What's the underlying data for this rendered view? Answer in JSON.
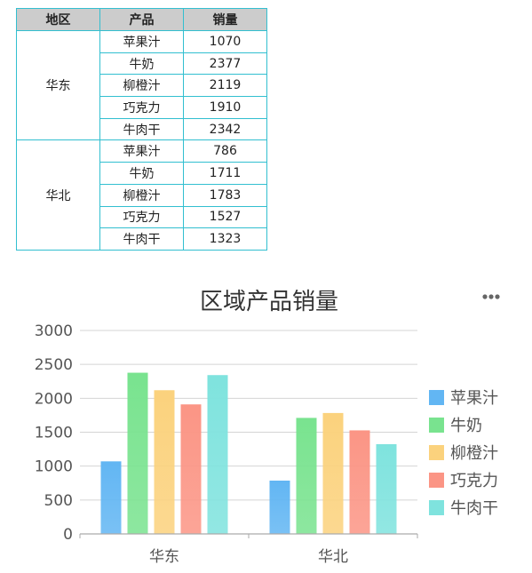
{
  "table": {
    "headers": [
      "地区",
      "产品",
      "销量"
    ],
    "groups": [
      {
        "region": "华东",
        "rows": [
          {
            "product": "苹果汁",
            "sales": "1070"
          },
          {
            "product": "牛奶",
            "sales": "2377"
          },
          {
            "product": "柳橙汁",
            "sales": "2119"
          },
          {
            "product": "巧克力",
            "sales": "1910"
          },
          {
            "product": "牛肉干",
            "sales": "2342"
          }
        ]
      },
      {
        "region": "华北",
        "rows": [
          {
            "product": "苹果汁",
            "sales": "786"
          },
          {
            "product": "牛奶",
            "sales": "1711"
          },
          {
            "product": "柳橙汁",
            "sales": "1783"
          },
          {
            "product": "巧克力",
            "sales": "1527"
          },
          {
            "product": "牛肉干",
            "sales": "1323"
          }
        ]
      }
    ]
  },
  "chart_data": {
    "type": "bar",
    "title": "区域产品销量",
    "categories": [
      "华东",
      "华北"
    ],
    "series": [
      {
        "name": "苹果汁",
        "values": [
          1070,
          786
        ],
        "color": "#62b6f3"
      },
      {
        "name": "牛奶",
        "values": [
          2377,
          1711
        ],
        "color": "#79e38f"
      },
      {
        "name": "柳橙汁",
        "values": [
          2119,
          1783
        ],
        "color": "#fbd27d"
      },
      {
        "name": "巧克力",
        "values": [
          1910,
          1527
        ],
        "color": "#fb9585"
      },
      {
        "name": "牛肉干",
        "values": [
          2342,
          1323
        ],
        "color": "#7fe3de"
      }
    ],
    "yticks": [
      0,
      500,
      1000,
      1500,
      2000,
      2500,
      3000
    ],
    "ylim": [
      0,
      3000
    ],
    "grid": true,
    "legend": "right"
  },
  "toolbar": {
    "more_icon": "more-horizontal-icon"
  }
}
